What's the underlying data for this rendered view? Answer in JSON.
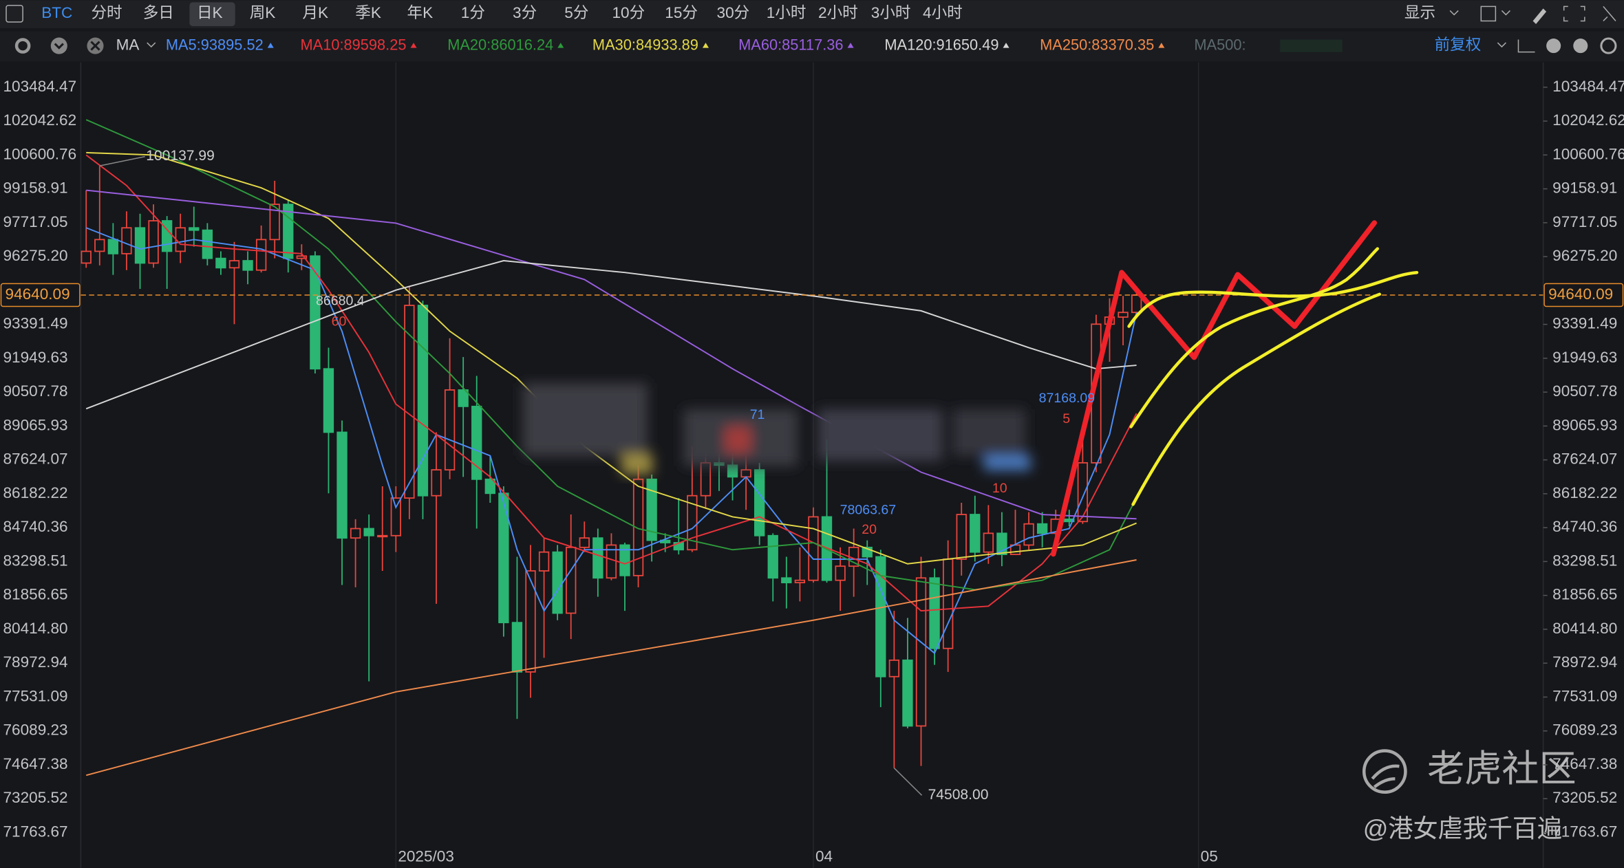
{
  "toolbar": {
    "symbol": "BTC",
    "periods": [
      "分时",
      "多日",
      "日K",
      "周K",
      "月K",
      "季K",
      "年K",
      "1分",
      "3分",
      "5分",
      "10分",
      "15分",
      "30分",
      "1小时",
      "2小时",
      "3小时",
      "4小时"
    ],
    "display": "显示"
  },
  "indicator_bar": {
    "indicator": "MA",
    "ma500": "MA500:",
    "adjust": "前复权"
  },
  "chart_data": {
    "type": "candlestick",
    "up_color": "#e8463d",
    "down_color": "#2bb673",
    "open": [
      96000,
      96500,
      97000,
      96400,
      97500,
      96000,
      97800,
      96500,
      97500,
      97400,
      96200,
      95800,
      96100,
      95700,
      97000,
      98500,
      96200,
      96300,
      91500,
      88800,
      84300,
      84700,
      84400,
      84400,
      86000,
      94200,
      86100,
      87200,
      90600,
      89900,
      86800,
      86200,
      80700,
      78600,
      82900,
      83700,
      81100,
      83900,
      84300,
      82600,
      84000,
      82700,
      86800,
      84200,
      84100,
      83800,
      86100,
      87500,
      87400,
      86900,
      87200,
      84400,
      82600,
      82400,
      82500,
      85200,
      82500,
      83100,
      83900,
      83500,
      78400,
      79100,
      76300,
      82600,
      79600,
      83400,
      85300,
      83700,
      84500,
      83600,
      84000,
      84900,
      84500,
      85100,
      85000,
      87500,
      93400,
      93700,
      93900
    ],
    "high": [
      99100,
      100137.99,
      97700,
      98200,
      98100,
      98500,
      98000,
      98100,
      98400,
      97700,
      96500,
      96900,
      96500,
      97600,
      99500,
      98700,
      96800,
      96500,
      92400,
      89300,
      85100,
      85300,
      86500,
      86500,
      95000,
      94400,
      88800,
      92800,
      92000,
      91200,
      87800,
      86500,
      83500,
      84000,
      84300,
      84000,
      85300,
      85000,
      84700,
      84500,
      84100,
      87400,
      87000,
      84500,
      86000,
      88200,
      88700,
      88500,
      88200,
      87800,
      87500,
      84500,
      83500,
      83900,
      85600,
      88500,
      83900,
      84700,
      84200,
      83800,
      81200,
      80900,
      83500,
      83000,
      84200,
      85800,
      86100,
      85700,
      85400,
      85500,
      85400,
      85400,
      85500,
      85500,
      88500,
      93800,
      94500,
      94600,
      94900
    ],
    "low": [
      95800,
      95900,
      95500,
      95700,
      94900,
      95800,
      94900,
      96000,
      96700,
      95900,
      95500,
      93400,
      95100,
      95600,
      96200,
      95600,
      95700,
      91300,
      86200,
      82300,
      82200,
      78200,
      82900,
      83700,
      85100,
      85100,
      81500,
      86800,
      86900,
      84700,
      85800,
      80100,
      76600,
      77500,
      79200,
      80800,
      80000,
      83700,
      81800,
      82500,
      81200,
      82200,
      83300,
      83700,
      83600,
      83700,
      85600,
      86300,
      85900,
      85500,
      84000,
      81600,
      81300,
      81600,
      82400,
      82400,
      81200,
      81800,
      82300,
      77100,
      74508,
      76200,
      74600,
      78900,
      78600,
      82700,
      83300,
      83200,
      83100,
      83600,
      83800,
      83900,
      84100,
      84800,
      84900,
      87100,
      91800,
      92500,
      93700
    ],
    "close": [
      96500,
      97000,
      96400,
      97500,
      96000,
      97800,
      96500,
      97500,
      97400,
      96200,
      95800,
      96100,
      95700,
      97000,
      98500,
      96200,
      96300,
      91500,
      88800,
      84300,
      84700,
      84400,
      84400,
      86000,
      94200,
      86100,
      87200,
      90600,
      89900,
      86800,
      86200,
      80700,
      78600,
      82900,
      83700,
      81100,
      83900,
      84300,
      82600,
      84000,
      82700,
      86800,
      84200,
      84100,
      83800,
      86100,
      87500,
      87400,
      86900,
      87200,
      84400,
      82600,
      82400,
      82500,
      85200,
      82500,
      83100,
      83900,
      83500,
      78400,
      79100,
      76300,
      82600,
      79600,
      83400,
      85300,
      83700,
      84500,
      83600,
      84000,
      84900,
      84500,
      85100,
      85000,
      87500,
      93400,
      93700,
      93900,
      94640.09
    ],
    "xlim": [
      -0.4,
      108.2
    ],
    "xticks": [
      {
        "value": 23,
        "label": "2025/03"
      },
      {
        "value": 54,
        "label": "04"
      },
      {
        "value": 82.6,
        "label": "05"
      }
    ],
    "ylim": [
      71146.87,
      104541.84
    ],
    "yticks": [
      103484.47,
      102042.62,
      100600.76,
      99158.91,
      97717.05,
      {
        "value": 96275.2,
        "label": "96275.20"
      },
      93391.49,
      91949.63,
      90507.78,
      89065.93,
      87624.07,
      86182.22,
      84740.36,
      83298.51,
      81856.65,
      {
        "value": 80414.8,
        "label": "80414.80"
      },
      78972.94,
      77531.09,
      76089.23,
      74647.38,
      73205.52,
      71763.67
    ],
    "current_price": 94640.09,
    "series": [
      {
        "name": "MA5:93895.52",
        "color": "#4d8ef7",
        "x": [
          0,
          4,
          8,
          13,
          17,
          19,
          22,
          23,
          26,
          30,
          32,
          34,
          37,
          41,
          45,
          49,
          52,
          54,
          58,
          60,
          63,
          66,
          70,
          73,
          76,
          78
        ],
        "values": [
          97500,
          96600,
          97000,
          96600,
          95700,
          93100,
          87400,
          85600,
          88700,
          87800,
          83800,
          81200,
          83800,
          83800,
          84700,
          86900,
          84700,
          83400,
          83400,
          80800,
          79400,
          83200,
          84300,
          84700,
          88700,
          93895.52
        ]
      },
      {
        "name": "MA10:89598.25",
        "color": "#e8333a",
        "x": [
          0,
          3,
          7,
          11,
          16,
          18,
          21,
          23,
          26,
          30,
          34,
          40,
          45,
          50,
          54,
          58,
          62,
          67,
          71,
          74,
          78
        ],
        "values": [
          100600,
          99300,
          96800,
          96600,
          96400,
          94850,
          92200,
          90000,
          88700,
          86900,
          84300,
          83200,
          84300,
          85200,
          84100,
          83200,
          81200,
          81400,
          83200,
          85200,
          89598.25
        ]
      },
      {
        "name": "MA20:86016.24",
        "color": "#2e9a3c",
        "x": [
          0,
          6,
          14,
          18,
          23,
          27,
          32,
          35,
          41,
          48,
          54,
          59,
          66,
          71,
          76,
          78
        ],
        "values": [
          102100,
          100600,
          98400,
          96600,
          93500,
          91300,
          88200,
          86500,
          84700,
          83800,
          84100,
          82700,
          82100,
          82500,
          83800,
          86016.24
        ]
      },
      {
        "name": "MA30:84933.89",
        "color": "#e3d849",
        "x": [
          0,
          5,
          13,
          18,
          23,
          27,
          32,
          37,
          41,
          48,
          54,
          61,
          67,
          74,
          78
        ],
        "values": [
          100700,
          100600,
          99200,
          97900,
          95300,
          93100,
          91100,
          88200,
          86500,
          85200,
          84700,
          83200,
          83600,
          84000,
          84933.89
        ]
      },
      {
        "name": "MA60:85117.36",
        "color": "#9a5fe0",
        "x": [
          0,
          23,
          37,
          48,
          53,
          62,
          71,
          78
        ],
        "values": [
          99100,
          97700,
          95300,
          91500,
          89900,
          87100,
          85300,
          85117.36
        ]
      },
      {
        "name": "MA120:91650.49",
        "color": "#d6d6d6",
        "x": [
          0,
          23,
          31,
          40,
          54,
          62,
          70,
          75,
          78
        ],
        "values": [
          89800,
          94850,
          96100,
          95600,
          94600,
          93970,
          92400,
          91500,
          91650.49
        ]
      },
      {
        "name": "MA250:83370.35",
        "color": "#f08a4b",
        "x": [
          0,
          23,
          54,
          78
        ],
        "values": [
          74200,
          77750,
          80800,
          83370.35
        ]
      }
    ]
  },
  "annotations": [
    "100137.99",
    "86680.4",
    "60",
    "71",
    "78063.67",
    "20",
    "87168.09",
    "5",
    "10",
    {
      "value": 74508,
      "label": "74508.00"
    }
  ],
  "watermark": {
    "logo": "老虎社区",
    "user": "@港女虐我千百遍"
  }
}
